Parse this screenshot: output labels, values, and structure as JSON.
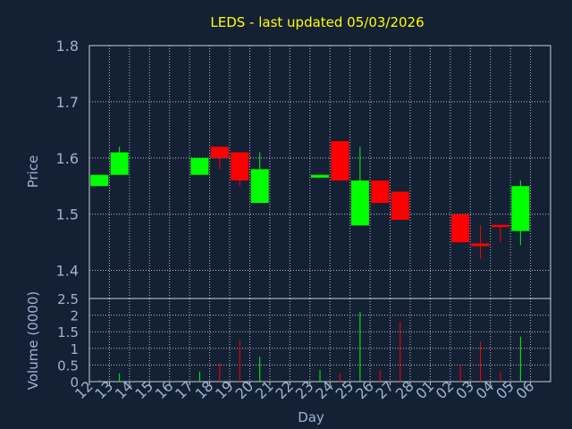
{
  "chart_data": [
    {
      "type": "candlestick",
      "title": "LEDS - last updated 05/03/2026",
      "ylabel": "Price",
      "ylim": [
        1.35,
        1.8
      ],
      "yticks": [
        "1.4",
        "1.5",
        "1.6",
        "1.7",
        "1.8"
      ],
      "ytick_values": [
        1.4,
        1.5,
        1.6,
        1.7,
        1.8
      ],
      "colors": {
        "up": "#00ff00",
        "down": "#ff0000",
        "background": "#142034",
        "text": "#9cb4d4",
        "title": "#ffff00"
      },
      "grid": true,
      "candles": [
        {
          "day": "12",
          "open": 1.55,
          "close": 1.57,
          "high": 1.57,
          "low": 1.55
        },
        {
          "day": "13",
          "open": 1.57,
          "close": 1.61,
          "high": 1.62,
          "low": 1.57
        },
        {
          "day": "17",
          "open": 1.57,
          "close": 1.6,
          "high": 1.6,
          "low": 1.57
        },
        {
          "day": "18",
          "open": 1.62,
          "close": 1.6,
          "high": 1.62,
          "low": 1.58
        },
        {
          "day": "19",
          "open": 1.61,
          "close": 1.56,
          "high": 1.61,
          "low": 1.55
        },
        {
          "day": "20",
          "open": 1.52,
          "close": 1.58,
          "high": 1.61,
          "low": 1.52
        },
        {
          "day": "23",
          "open": 1.565,
          "close": 1.57,
          "high": 1.57,
          "low": 1.565
        },
        {
          "day": "24",
          "open": 1.63,
          "close": 1.56,
          "high": 1.63,
          "low": 1.56
        },
        {
          "day": "25",
          "open": 1.48,
          "close": 1.56,
          "high": 1.62,
          "low": 1.48
        },
        {
          "day": "26",
          "open": 1.56,
          "close": 1.52,
          "high": 1.56,
          "low": 1.52
        },
        {
          "day": "27",
          "open": 1.54,
          "close": 1.49,
          "high": 1.54,
          "low": 1.49
        },
        {
          "day": "02",
          "open": 1.5,
          "close": 1.45,
          "high": 1.5,
          "low": 1.45
        },
        {
          "day": "03",
          "open": 1.448,
          "close": 1.443,
          "high": 1.48,
          "low": 1.42
        },
        {
          "day": "04",
          "open": 1.481,
          "close": 1.477,
          "high": 1.48,
          "low": 1.45
        },
        {
          "day": "05",
          "open": 1.47,
          "close": 1.55,
          "high": 1.56,
          "low": 1.445
        }
      ]
    },
    {
      "type": "bar",
      "xlabel": "Day",
      "ylabel": "Volume (0000)",
      "ylim": [
        0,
        2.5
      ],
      "yticks": [
        "0",
        "0.5",
        "1",
        "1.5",
        "2",
        "2.5"
      ],
      "ytick_values": [
        0,
        0.5,
        1,
        1.5,
        2,
        2.5
      ],
      "categories": [
        "12",
        "13",
        "14",
        "15",
        "16",
        "17",
        "18",
        "19",
        "20",
        "21",
        "22",
        "23",
        "24",
        "25",
        "26",
        "27",
        "28",
        "01",
        "02",
        "03",
        "04",
        "05",
        "06"
      ],
      "volumes": [
        {
          "day": "12",
          "value": 0.05,
          "dir": "up"
        },
        {
          "day": "13",
          "value": 0.25,
          "dir": "up"
        },
        {
          "day": "17",
          "value": 0.3,
          "dir": "up"
        },
        {
          "day": "18",
          "value": 0.55,
          "dir": "down"
        },
        {
          "day": "19",
          "value": 1.25,
          "dir": "down"
        },
        {
          "day": "20",
          "value": 0.75,
          "dir": "up"
        },
        {
          "day": "23",
          "value": 0.35,
          "dir": "up"
        },
        {
          "day": "24",
          "value": 0.25,
          "dir": "down"
        },
        {
          "day": "25",
          "value": 2.1,
          "dir": "up"
        },
        {
          "day": "26",
          "value": 0.35,
          "dir": "down"
        },
        {
          "day": "27",
          "value": 1.8,
          "dir": "down"
        },
        {
          "day": "02",
          "value": 0.5,
          "dir": "down"
        },
        {
          "day": "03",
          "value": 1.2,
          "dir": "down"
        },
        {
          "day": "04",
          "value": 0.3,
          "dir": "down"
        },
        {
          "day": "05",
          "value": 1.35,
          "dir": "up"
        }
      ]
    }
  ]
}
